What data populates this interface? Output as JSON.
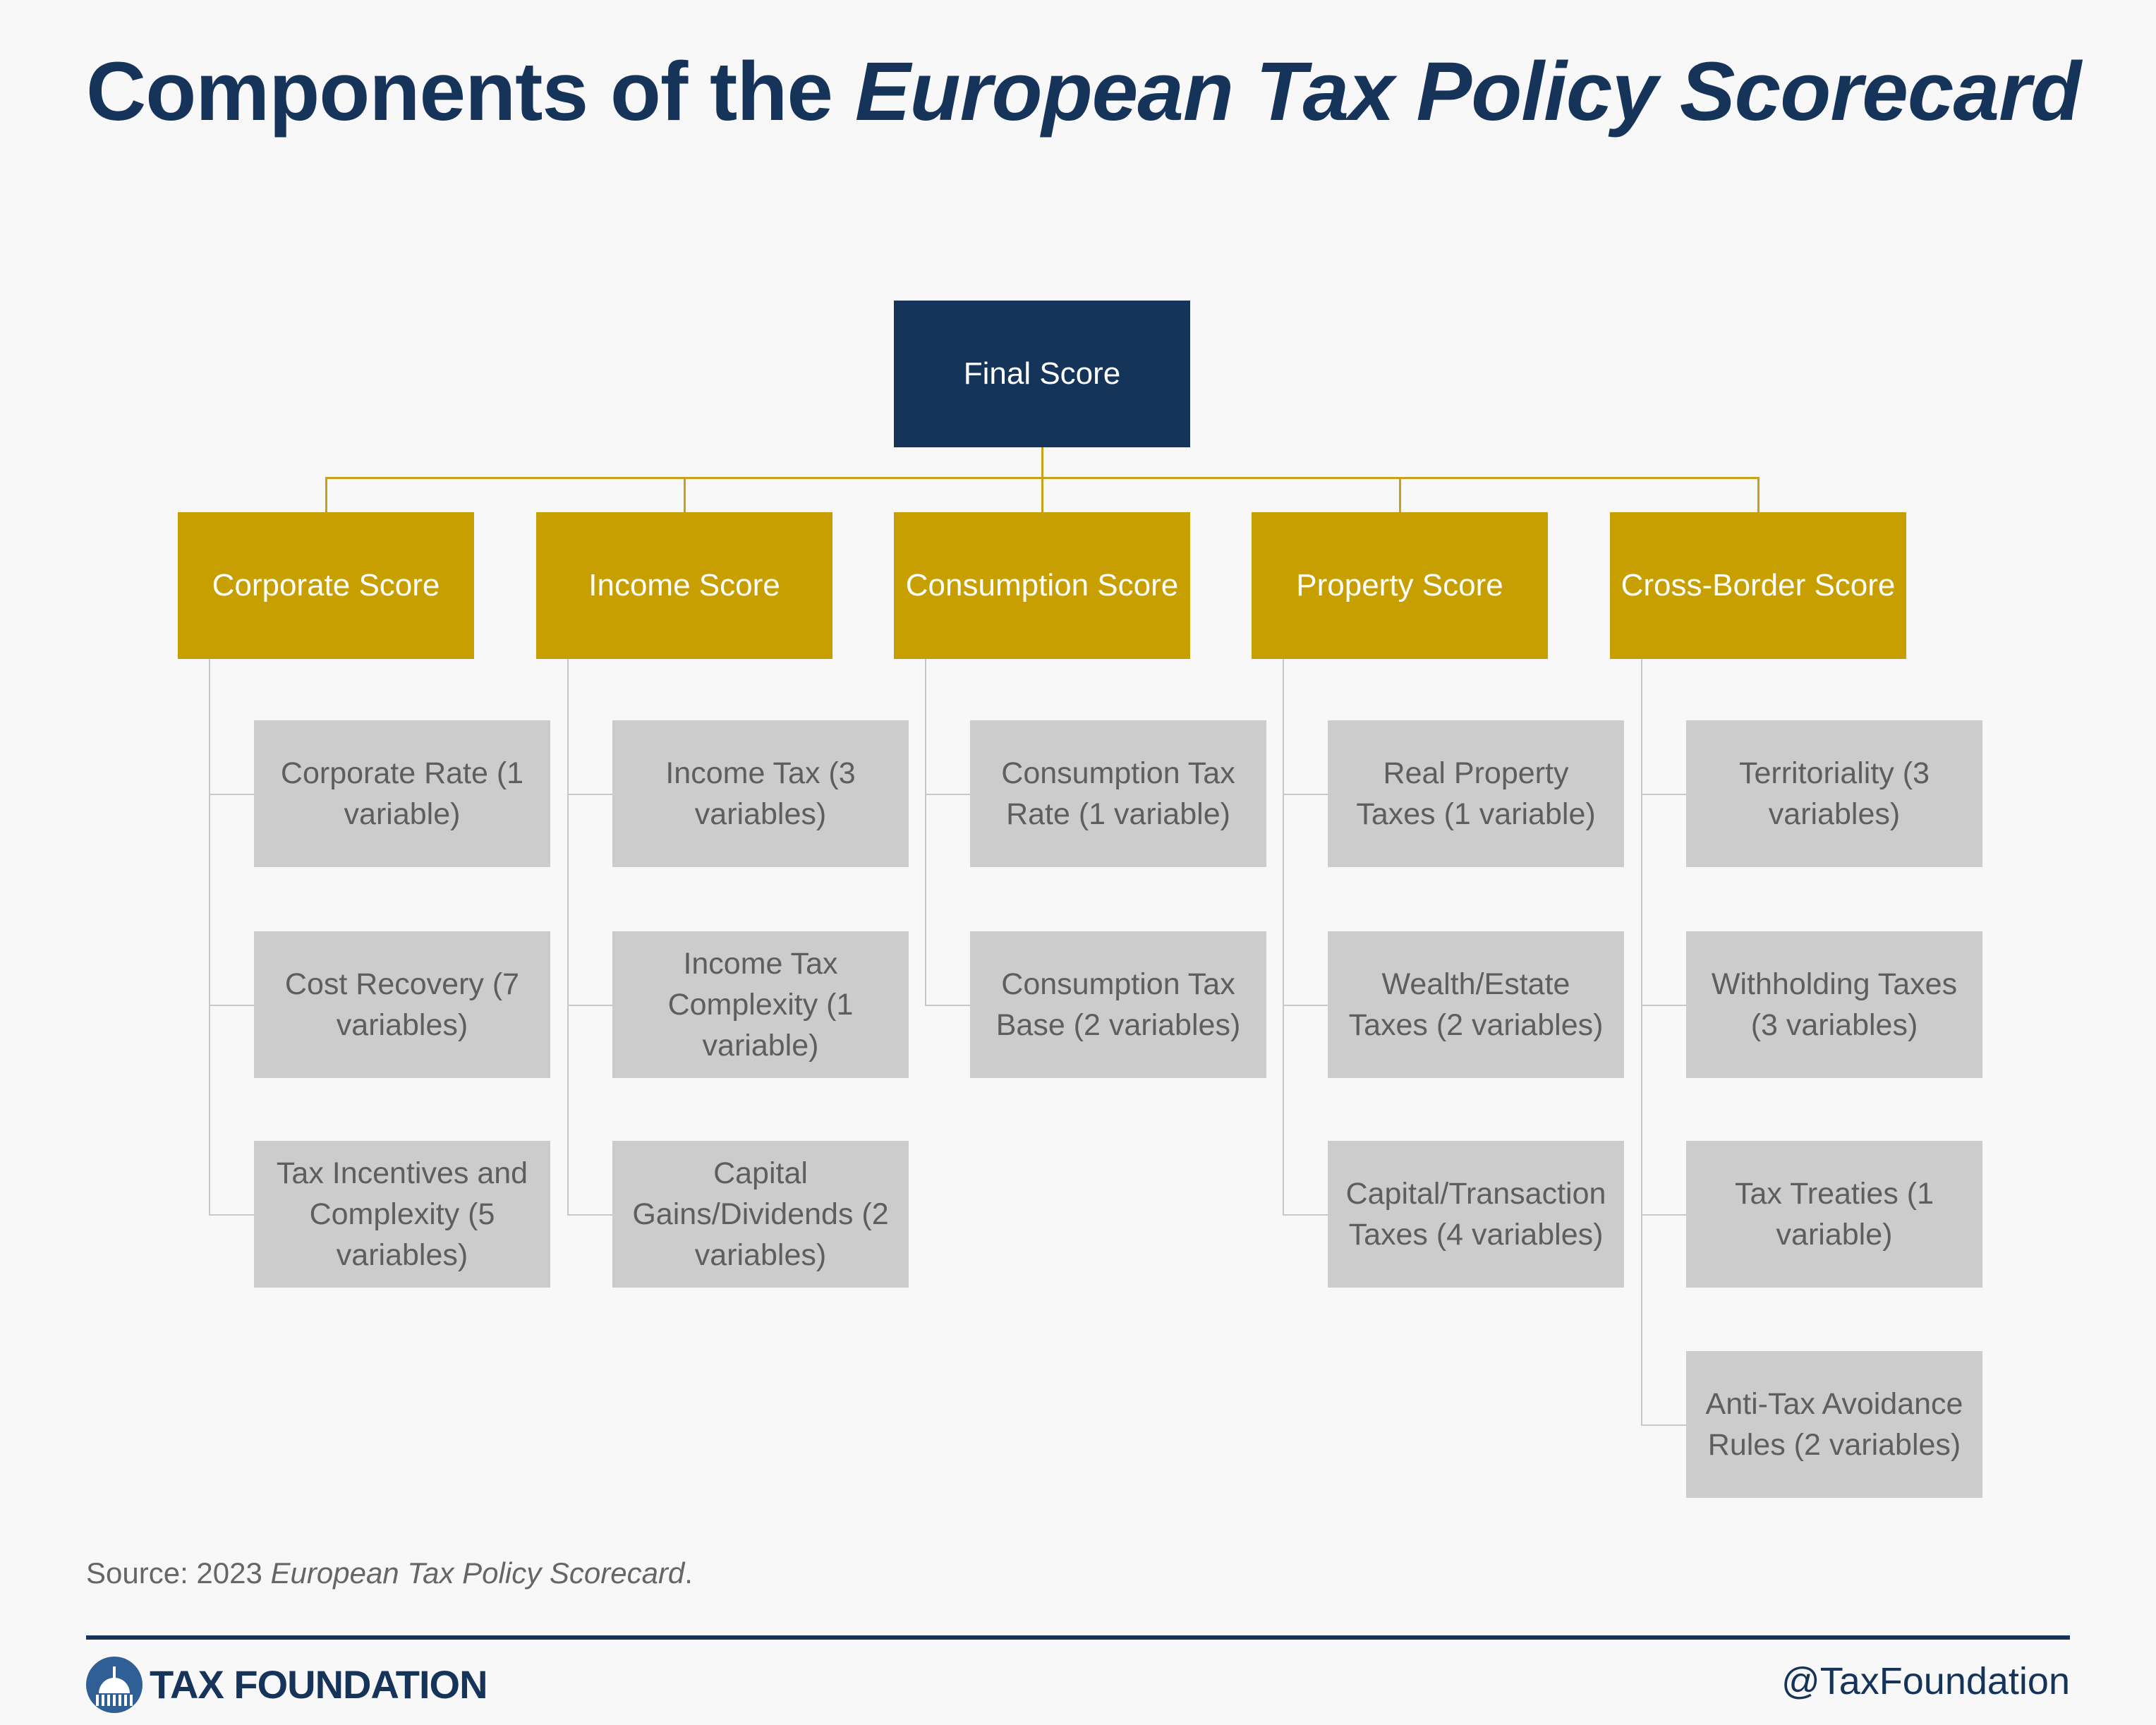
{
  "title": {
    "prefix": "Components of the ",
    "italic": "European Tax Policy Scorecard"
  },
  "root": {
    "label": "Final Score"
  },
  "categories": [
    {
      "label": "Corporate Score",
      "components": [
        "Corporate Rate (1 variable)",
        "Cost Recovery (7 variables)",
        "Tax Incentives and Complexity (5 variables)"
      ]
    },
    {
      "label": "Income Score",
      "components": [
        "Income Tax (3 variables)",
        "Income Tax Complexity (1 variable)",
        "Capital Gains/Dividends (2 variables)"
      ]
    },
    {
      "label": "Consumption Score",
      "components": [
        "Consumption Tax Rate (1 variable)",
        "Consumption Tax Base (2 variables)"
      ]
    },
    {
      "label": "Property Score",
      "components": [
        "Real Property Taxes (1 variable)",
        "Wealth/Estate Taxes (2 variables)",
        "Capital/Transaction Taxes (4 variables)"
      ]
    },
    {
      "label": "Cross-Border Score",
      "components": [
        "Territoriality (3 variables)",
        "Withholding Taxes (3 variables)",
        "Tax Treaties (1 variable)",
        "Anti-Tax Avoidance Rules (2 variables)"
      ]
    }
  ],
  "source": {
    "prefix": "Source: 2023 ",
    "italic": "European Tax Policy Scorecard",
    "suffix": "."
  },
  "footer": {
    "brand": "TAX FOUNDATION",
    "handle": "@TaxFoundation",
    "logo_icon": "capitol-dome-icon"
  },
  "colors": {
    "navy": "#16345a",
    "gold": "#c89f00",
    "leaf_gray": "#cccccc"
  }
}
